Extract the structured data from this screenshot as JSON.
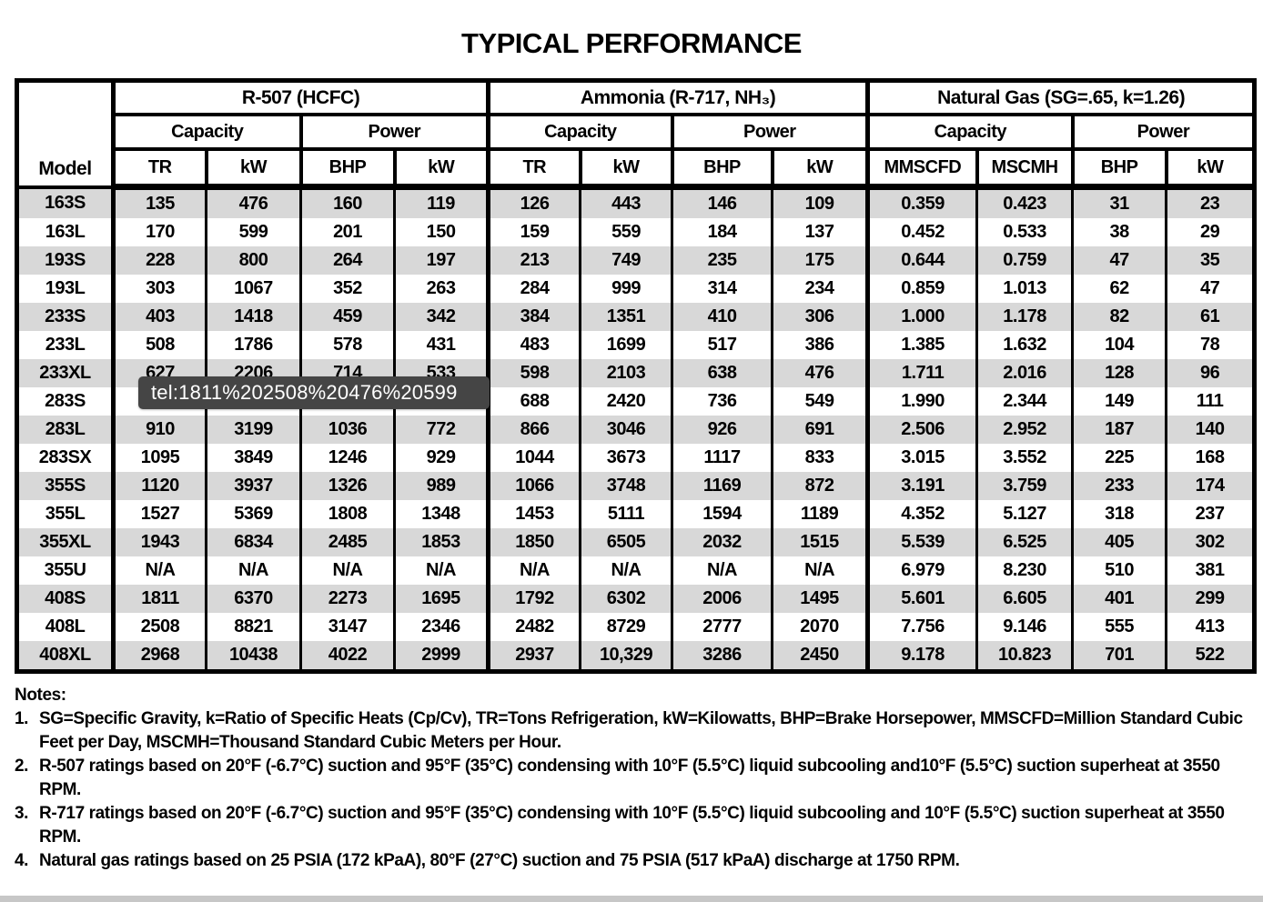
{
  "page": {
    "title": "TYPICAL PERFORMANCE"
  },
  "table": {
    "model_header": "Model",
    "groups": [
      {
        "label": "R-507 (HCFC)"
      },
      {
        "label": "Ammonia (R-717, NH₃)"
      },
      {
        "label": "Natural Gas (SG=.65, k=1.26)"
      }
    ],
    "subgroups": [
      "Capacity",
      "Power",
      "Capacity",
      "Power",
      "Capacity",
      "Power"
    ],
    "unit_headers": [
      "TR",
      "kW",
      "BHP",
      "kW",
      "TR",
      "kW",
      "BHP",
      "kW",
      "MMSCFD",
      "MSCMH",
      "BHP",
      "kW"
    ],
    "rows": [
      {
        "model": "163S",
        "values": [
          "135",
          "476",
          "160",
          "119",
          "126",
          "443",
          "146",
          "109",
          "0.359",
          "0.423",
          "31",
          "23"
        ]
      },
      {
        "model": "163L",
        "values": [
          "170",
          "599",
          "201",
          "150",
          "159",
          "559",
          "184",
          "137",
          "0.452",
          "0.533",
          "38",
          "29"
        ]
      },
      {
        "model": "193S",
        "values": [
          "228",
          "800",
          "264",
          "197",
          "213",
          "749",
          "235",
          "175",
          "0.644",
          "0.759",
          "47",
          "35"
        ]
      },
      {
        "model": "193L",
        "values": [
          "303",
          "1067",
          "352",
          "263",
          "284",
          "999",
          "314",
          "234",
          "0.859",
          "1.013",
          "62",
          "47"
        ]
      },
      {
        "model": "233S",
        "values": [
          "403",
          "1418",
          "459",
          "342",
          "384",
          "1351",
          "410",
          "306",
          "1.000",
          "1.178",
          "82",
          "61"
        ]
      },
      {
        "model": "233L",
        "values": [
          "508",
          "1786",
          "578",
          "431",
          "483",
          "1699",
          "517",
          "386",
          "1.385",
          "1.632",
          "104",
          "78"
        ]
      },
      {
        "model": "233XL",
        "values": [
          "627",
          "2206",
          "714",
          "533",
          "598",
          "2103",
          "638",
          "476",
          "1.711",
          "2.016",
          "128",
          "96"
        ]
      },
      {
        "model": "283S",
        "values": [
          "",
          "",
          "",
          "",
          "688",
          "2420",
          "736",
          "549",
          "1.990",
          "2.344",
          "149",
          "111"
        ]
      },
      {
        "model": "283L",
        "values": [
          "910",
          "3199",
          "1036",
          "772",
          "866",
          "3046",
          "926",
          "691",
          "2.506",
          "2.952",
          "187",
          "140"
        ]
      },
      {
        "model": "283SX",
        "values": [
          "1095",
          "3849",
          "1246",
          "929",
          "1044",
          "3673",
          "1117",
          "833",
          "3.015",
          "3.552",
          "225",
          "168"
        ]
      },
      {
        "model": "355S",
        "values": [
          "1120",
          "3937",
          "1326",
          "989",
          "1066",
          "3748",
          "1169",
          "872",
          "3.191",
          "3.759",
          "233",
          "174"
        ]
      },
      {
        "model": "355L",
        "values": [
          "1527",
          "5369",
          "1808",
          "1348",
          "1453",
          "5111",
          "1594",
          "1189",
          "4.352",
          "5.127",
          "318",
          "237"
        ]
      },
      {
        "model": "355XL",
        "values": [
          "1943",
          "6834",
          "2485",
          "1853",
          "1850",
          "6505",
          "2032",
          "1515",
          "5.539",
          "6.525",
          "405",
          "302"
        ]
      },
      {
        "model": "355U",
        "values": [
          "N/A",
          "N/A",
          "N/A",
          "N/A",
          "N/A",
          "N/A",
          "N/A",
          "N/A",
          "6.979",
          "8.230",
          "510",
          "381"
        ]
      },
      {
        "model": "408S",
        "values": [
          "1811",
          "6370",
          "2273",
          "1695",
          "1792",
          "6302",
          "2006",
          "1495",
          "5.601",
          "6.605",
          "401",
          "299"
        ]
      },
      {
        "model": "408L",
        "values": [
          "2508",
          "8821",
          "3147",
          "2346",
          "2482",
          "8729",
          "2777",
          "2070",
          "7.756",
          "9.146",
          "555",
          "413"
        ]
      },
      {
        "model": "408XL",
        "values": [
          "2968",
          "10438",
          "4022",
          "2999",
          "2937",
          "10,329",
          "3286",
          "2450",
          "9.178",
          "10.823",
          "701",
          "522"
        ]
      }
    ]
  },
  "tooltip": {
    "text": "tel:1811%202508%20476%20599",
    "bg": "#454545",
    "text_color": "#ffffff"
  },
  "notes": {
    "heading": "Notes:",
    "items": [
      {
        "num": "1.",
        "text": "SG=Specific Gravity, k=Ratio of Specific Heats (Cp/Cv), TR=Tons Refrigeration, kW=Kilowatts, BHP=Brake Horsepower, MMSCFD=Million Standard Cubic Feet per Day, MSCMH=Thousand Standard Cubic Meters per Hour."
      },
      {
        "num": "2.",
        "text": "R-507 ratings based on 20°F (-6.7°C) suction and 95°F (35°C) condensing with 10°F (5.5°C) liquid subcooling and10°F (5.5°C) suction superheat at 3550 RPM."
      },
      {
        "num": "3.",
        "text": "R-717 ratings based on 20°F (-6.7°C) suction and 95°F (35°C) condensing with 10°F (5.5°C) liquid subcooling and 10°F (5.5°C) suction superheat at 3550 RPM."
      },
      {
        "num": "4.",
        "text": "Natural gas ratings based on 25 PSIA (172 kPaA), 80°F (27°C) suction and 75 PSIA (517 kPaA) discharge at 1750 RPM."
      }
    ]
  },
  "colors": {
    "stripe": "#d8d8d8",
    "border": "#000000",
    "tooltip_bg": "#454545"
  }
}
